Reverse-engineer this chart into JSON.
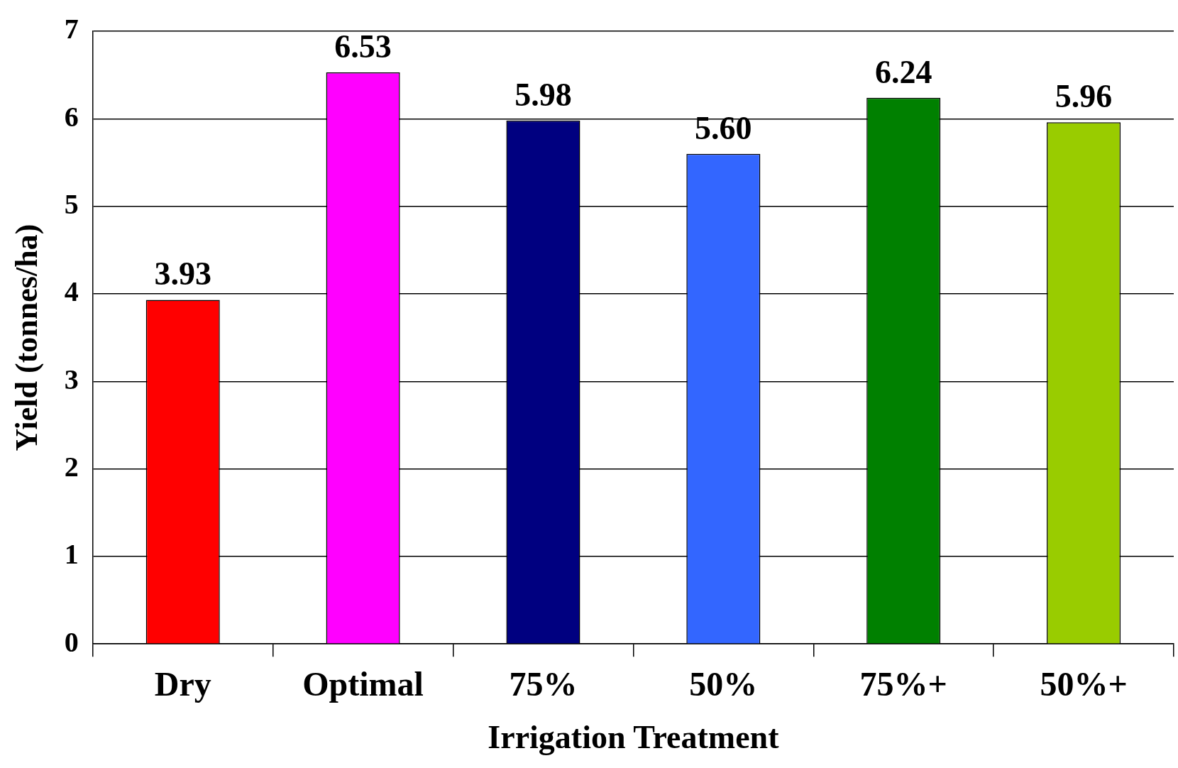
{
  "chart_data": {
    "type": "bar",
    "xlabel": "Irrigation Treatment",
    "ylabel": "Yield (tonnes/ha)",
    "categories": [
      "Dry",
      "Optimal",
      "75%",
      "50%",
      "75%+",
      "50%+"
    ],
    "values": [
      3.93,
      6.53,
      5.98,
      5.6,
      6.24,
      5.96
    ],
    "colors": [
      "#ff0000",
      "#ff00ff",
      "#000080",
      "#3366ff",
      "#008000",
      "#99cc00"
    ],
    "value_labels": [
      "3.93",
      "6.53",
      "5.98",
      "5.60",
      "6.24",
      "5.96"
    ],
    "ylim": [
      0,
      7
    ],
    "yticks": [
      0,
      1,
      2,
      3,
      4,
      5,
      6,
      7
    ],
    "grid": "y",
    "legend": false
  }
}
